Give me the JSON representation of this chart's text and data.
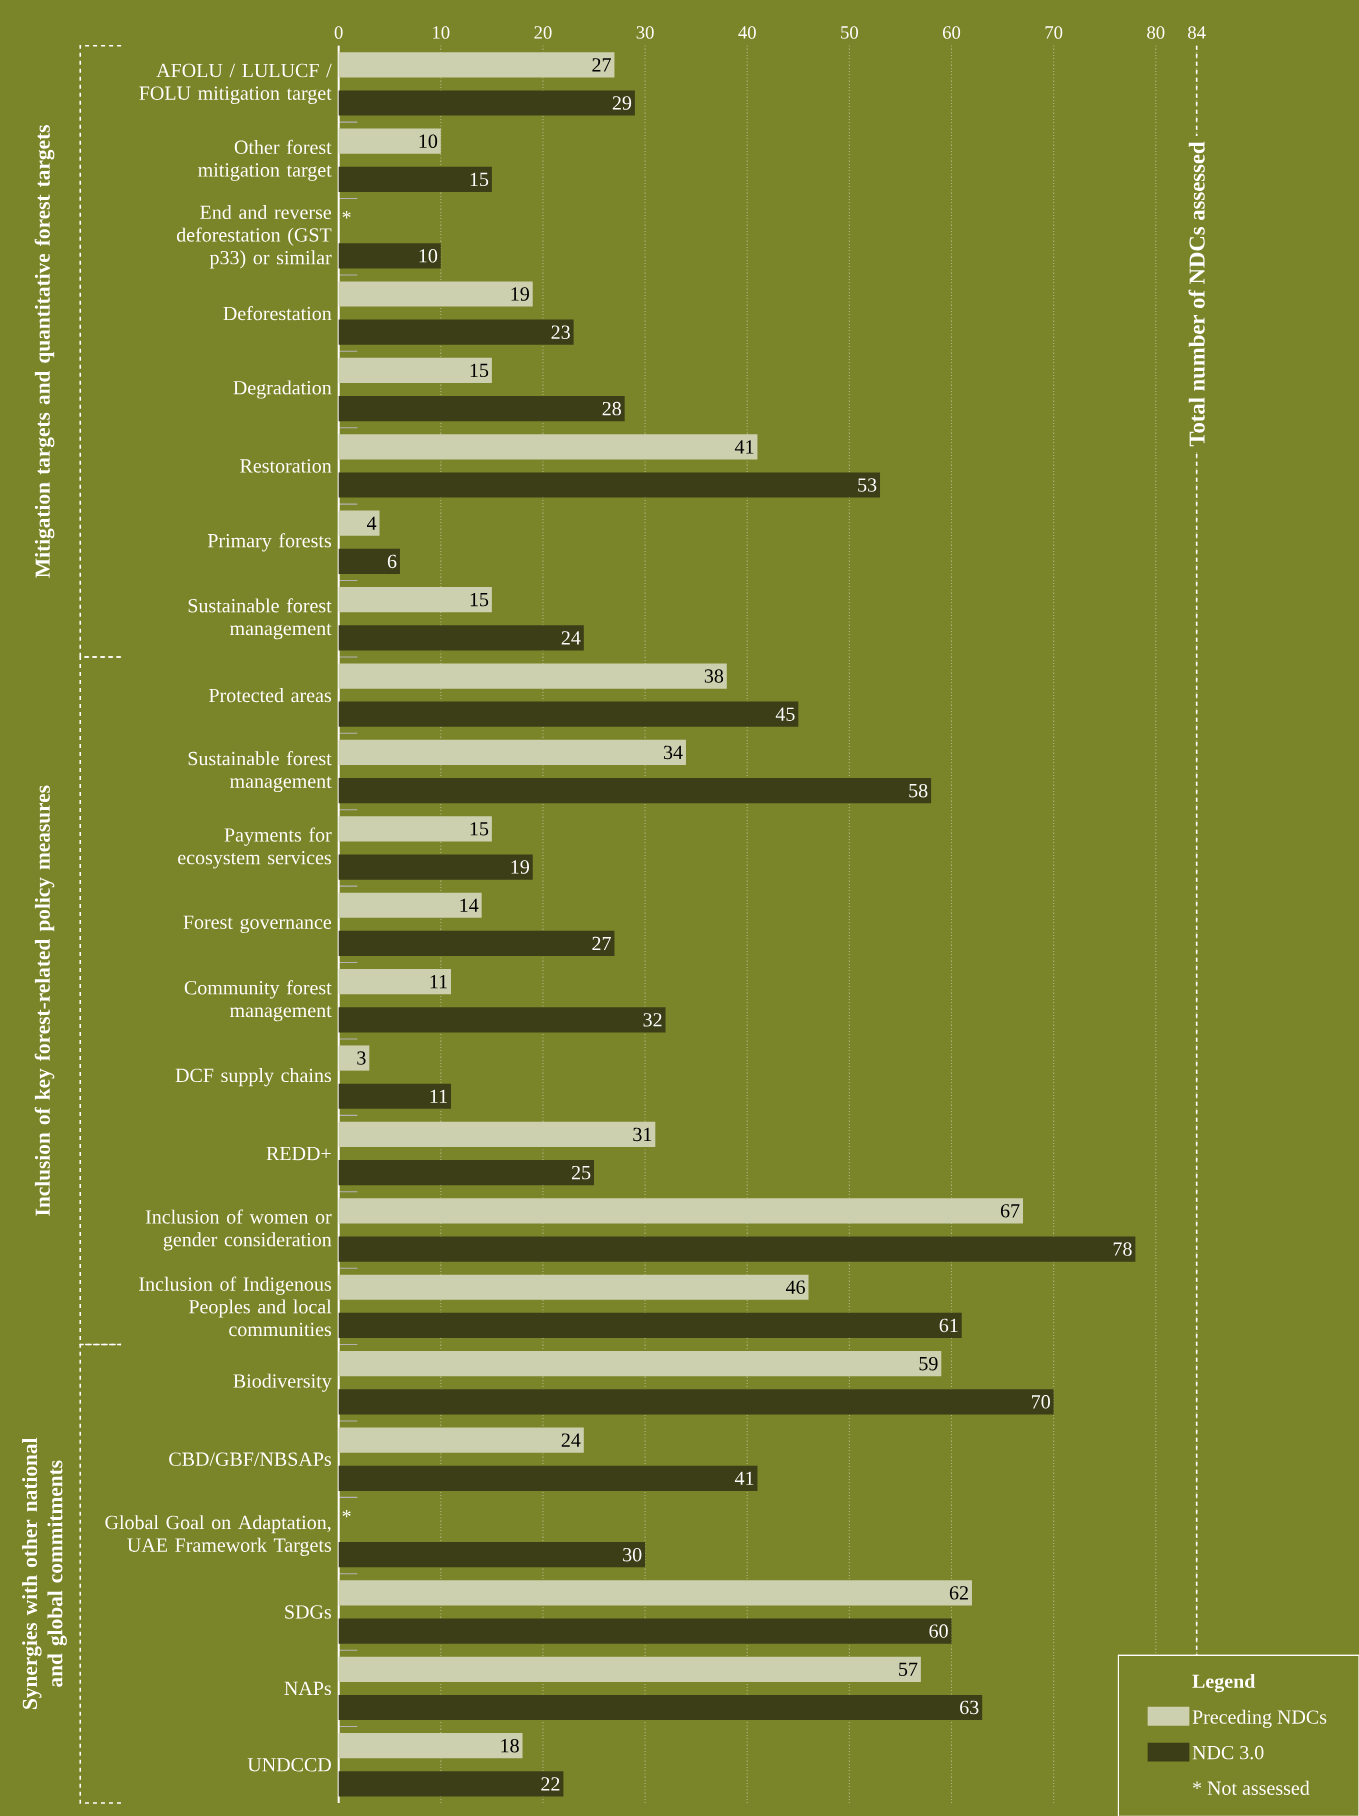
{
  "chart_data": {
    "type": "bar",
    "orientation": "horizontal",
    "categories": [
      "AFOLU / LULUCF / FOLU mitigation target",
      "Other forest mitigation target",
      "End and reverse deforestation (GST p33) or similar",
      "Deforestation",
      "Degradation",
      "Restoration",
      "Primary forests",
      "Sustainable forest management",
      "Protected areas",
      "Sustainable forest management",
      "Payments for ecosystem services",
      "Forest governance",
      "Community forest management",
      "DCF supply chains",
      "REDD+",
      "Inclusion of women or gender consideration",
      "Inclusion of Indigenous Peoples and local communities",
      "Biodiversity",
      "CBD/GBF/NBSAPs",
      "Global Goal on Adaptation, UAE Framework Targets",
      "SDGs",
      "NAPs",
      "UNDCCD"
    ],
    "series": [
      {
        "name": "Preceding NDCs",
        "color": "#cdd0ae",
        "values": [
          27,
          10,
          null,
          19,
          15,
          41,
          4,
          15,
          38,
          34,
          15,
          14,
          11,
          3,
          31,
          67,
          46,
          59,
          24,
          null,
          62,
          57,
          18
        ],
        "value_labels": [
          "27",
          "10",
          "*",
          "19",
          "15",
          "41",
          "4",
          "15",
          "38",
          "34",
          "15",
          "14",
          "11",
          "3",
          "31",
          "67",
          "46",
          "59",
          "24",
          "*",
          "62",
          "57",
          "18"
        ]
      },
      {
        "name": "NDC 3.0",
        "color": "#3b3e17",
        "values": [
          29,
          15,
          10,
          23,
          28,
          53,
          6,
          24,
          45,
          58,
          19,
          27,
          32,
          11,
          25,
          78,
          61,
          70,
          41,
          30,
          60,
          63,
          22
        ],
        "value_labels": [
          "29",
          "15",
          "10",
          "23",
          "28",
          "53",
          "6",
          "24",
          "45",
          "58",
          "19",
          "27",
          "32",
          "11",
          "25",
          "78",
          "61",
          "70",
          "41",
          "30",
          "60",
          "63",
          "22"
        ]
      }
    ],
    "xlim": [
      0,
      84
    ],
    "xticks": [
      0,
      10,
      20,
      30,
      40,
      50,
      60,
      70,
      80,
      84
    ],
    "grid": "x",
    "legend": "bottom right",
    "legend_title": "Legend",
    "ref_lines": [
      {
        "axis": "x",
        "value": 84,
        "label": "Total number of NDCs assessed",
        "color": "#ffffff",
        "line_style": "dashed"
      }
    ],
    "annotations": [
      "Mitigation targets and quantitative forest targets",
      "Inclusion of key forest-related policy measures",
      "Synergies with other national and global commitments",
      "* Not assessed"
    ]
  }
}
